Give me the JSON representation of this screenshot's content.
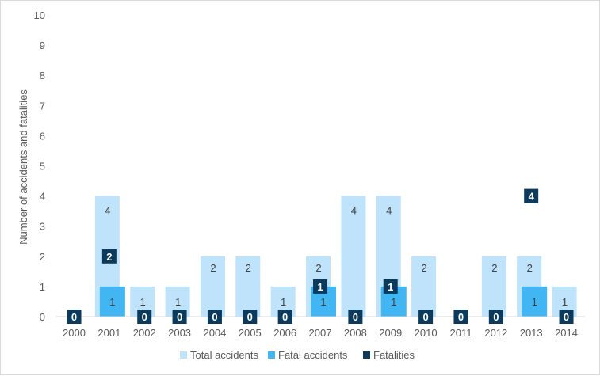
{
  "chart_data": {
    "type": "bar",
    "title": "",
    "xlabel": "",
    "ylabel": "Number of accidents and fatalities",
    "ylim": [
      0,
      10
    ],
    "yticks": [
      0,
      1,
      2,
      3,
      4,
      5,
      6,
      7,
      8,
      9,
      10
    ],
    "categories": [
      "2000",
      "2001",
      "2002",
      "2003",
      "2004",
      "2005",
      "2006",
      "2007",
      "2008",
      "2009",
      "2010",
      "2011",
      "2012",
      "2013",
      "2014"
    ],
    "series": [
      {
        "name": "Total accidents",
        "kind": "bar",
        "color": "#bfe3fa",
        "values": [
          0,
          4,
          1,
          1,
          2,
          2,
          1,
          2,
          4,
          4,
          2,
          0,
          2,
          2,
          1
        ]
      },
      {
        "name": "Fatal accidents",
        "kind": "bar",
        "color": "#41b6f2",
        "values": [
          0,
          1,
          0,
          0,
          0,
          0,
          0,
          1,
          0,
          1,
          0,
          0,
          0,
          1,
          0
        ]
      },
      {
        "name": "Fatalities",
        "kind": "marker",
        "color": "#0b3a5c",
        "values": [
          0,
          2,
          0,
          0,
          0,
          0,
          0,
          1,
          0,
          1,
          0,
          0,
          0,
          4,
          0
        ]
      }
    ],
    "legend": "bottom",
    "grid": false
  }
}
